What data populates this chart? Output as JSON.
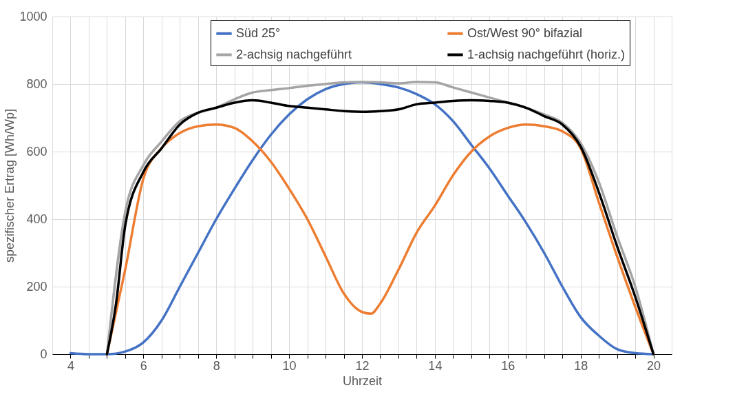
{
  "chart_data": {
    "type": "line",
    "xlabel": "Uhrzeit",
    "ylabel": "spezifischer Ertrag [Wh/Wp]",
    "xlim": [
      3.5,
      20.5
    ],
    "ylim": [
      0,
      1000
    ],
    "xticks": [
      4,
      {
        "value": 4.5,
        "label": null
      },
      {
        "value": 5,
        "label": null
      },
      {
        "value": 5.5,
        "label": null
      },
      6,
      {
        "value": 6.5,
        "label": null
      },
      {
        "value": 7,
        "label": null
      },
      {
        "value": 7.5,
        "label": null
      },
      8,
      {
        "value": 8.5,
        "label": null
      },
      {
        "value": 9,
        "label": null
      },
      {
        "value": 9.5,
        "label": null
      },
      10,
      {
        "value": 10.5,
        "label": null
      },
      {
        "value": 11,
        "label": null
      },
      {
        "value": 11.5,
        "label": null
      },
      12,
      {
        "value": 12.5,
        "label": null
      },
      {
        "value": 13,
        "label": null
      },
      {
        "value": 13.5,
        "label": null
      },
      14,
      {
        "value": 14.5,
        "label": null
      },
      {
        "value": 15,
        "label": null
      },
      {
        "value": 15.5,
        "label": null
      },
      16,
      {
        "value": 16.5,
        "label": null
      },
      {
        "value": 17,
        "label": null
      },
      {
        "value": 17.5,
        "label": null
      },
      18,
      {
        "value": 18.5,
        "label": null
      },
      {
        "value": 19,
        "label": null
      },
      {
        "value": 19.5,
        "label": null
      },
      20
    ],
    "yticks": [
      0,
      200,
      400,
      600,
      800,
      1000
    ],
    "grid": true,
    "legend": "top",
    "line_style": "solid",
    "marker": "none",
    "series": [
      {
        "name": "Süd 25°",
        "color": "#4472c4",
        "x": [
          4,
          4.5,
          5,
          5.5,
          6,
          6.5,
          7,
          7.5,
          8,
          8.5,
          9,
          9.5,
          10,
          10.5,
          11,
          11.5,
          12,
          12.5,
          13,
          13.5,
          14,
          14.5,
          15,
          15.5,
          16,
          16.5,
          17,
          17.5,
          18,
          18.5,
          19,
          19.5,
          20
        ],
        "values": [
          3,
          0,
          0,
          8,
          35,
          100,
          200,
          300,
          400,
          490,
          575,
          650,
          710,
          755,
          785,
          800,
          805,
          800,
          790,
          770,
          740,
          690,
          620,
          550,
          470,
          390,
          300,
          200,
          110,
          55,
          15,
          3,
          0
        ]
      },
      {
        "name": "Ost/West 90° bifazial",
        "color": "#ed7d31",
        "x": [
          5,
          5.5,
          6,
          6.5,
          7,
          7.5,
          8,
          8.5,
          9,
          9.5,
          10,
          10.5,
          11,
          11.5,
          12,
          12.25,
          12.5,
          13,
          13.5,
          14,
          14.5,
          15,
          15.5,
          16,
          16.5,
          17,
          17.5,
          18,
          18.5,
          19,
          19.5,
          20
        ],
        "values": [
          0,
          250,
          520,
          610,
          655,
          675,
          680,
          670,
          630,
          570,
          490,
          400,
          290,
          180,
          125,
          120,
          150,
          250,
          360,
          440,
          530,
          600,
          645,
          670,
          680,
          675,
          660,
          610,
          450,
          290,
          140,
          0
        ]
      },
      {
        "name": "2-achsig nachgeführt",
        "color": "#a5a5a5",
        "x": [
          5,
          5.5,
          6,
          6.5,
          7,
          7.5,
          8,
          8.5,
          9,
          9.5,
          10,
          10.5,
          11,
          11.5,
          12,
          12.5,
          13,
          13.5,
          14,
          14.5,
          15,
          15.5,
          16,
          16.5,
          17,
          17.5,
          18,
          18.5,
          19,
          19.5,
          20
        ],
        "values": [
          0,
          420,
          560,
          630,
          690,
          715,
          730,
          755,
          775,
          782,
          788,
          795,
          800,
          805,
          806,
          805,
          802,
          806,
          805,
          790,
          775,
          760,
          745,
          730,
          710,
          685,
          625,
          510,
          350,
          200,
          0
        ]
      },
      {
        "name": "1-achsig nachgeführt (horiz.)",
        "color": "#000000",
        "x": [
          5,
          5.25,
          5.5,
          6,
          6.5,
          7,
          7.5,
          8,
          8.5,
          9,
          9.5,
          10,
          10.5,
          11,
          11.5,
          12,
          12.5,
          13,
          13.5,
          14,
          14.5,
          15,
          15.5,
          16,
          16.5,
          17,
          17.5,
          18,
          18.5,
          19,
          19.5,
          20
        ],
        "values": [
          0,
          150,
          380,
          540,
          610,
          680,
          715,
          730,
          745,
          752,
          745,
          735,
          730,
          725,
          720,
          718,
          720,
          725,
          740,
          745,
          750,
          752,
          750,
          745,
          730,
          705,
          680,
          615,
          480,
          320,
          170,
          0
        ]
      }
    ]
  }
}
